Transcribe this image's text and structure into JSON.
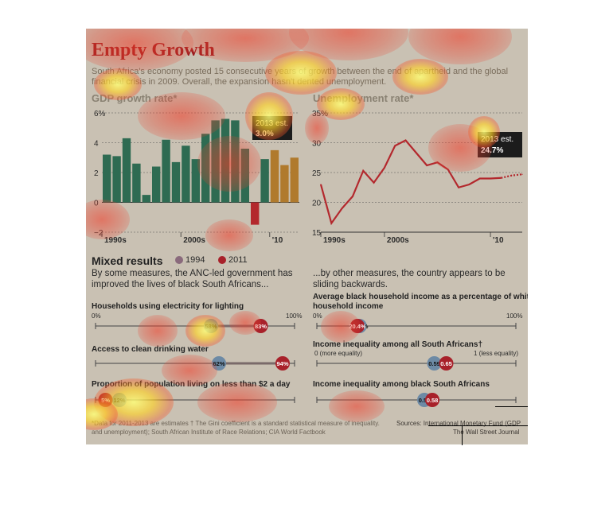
{
  "header": {
    "title": "Empty Growth",
    "subtitle_line1": "South Africa's economy posted 15 consecutive years of growth between the end of apartheid and the global",
    "subtitle_line2": "financial crisis in 2009. Overall, the expansion hasn't dented unemployment."
  },
  "chart_data": [
    {
      "type": "bar",
      "title": "GDP growth rate*",
      "ylim": [
        -2,
        6
      ],
      "y_ticks": [
        "6%",
        "4",
        "2",
        "0",
        "−2"
      ],
      "x_tick_labels": [
        "1990s",
        "2000s",
        "'10"
      ],
      "values": [
        3.2,
        3.1,
        4.3,
        2.6,
        0.5,
        2.4,
        4.2,
        2.7,
        3.8,
        2.9,
        4.6,
        5.5,
        5.6,
        5.5,
        3.6,
        -1.5,
        2.9,
        3.5,
        2.5,
        3.0
      ],
      "estimate_from_index": 17,
      "annotation_line1": "2013 est.",
      "annotation_line2": "3.0%",
      "colors": {
        "positive": "#2e6b52",
        "negative": "#b3282d",
        "estimate": "#b07a2d"
      }
    },
    {
      "type": "line",
      "title": "Unemployment rate*",
      "ylim": [
        15,
        35
      ],
      "y_ticks": [
        "35%",
        "30",
        "25",
        "20",
        "15"
      ],
      "x_tick_labels": [
        "1990s",
        "2000s",
        "'10"
      ],
      "values": [
        23.0,
        16.5,
        19.0,
        21.0,
        25.3,
        23.3,
        25.8,
        29.5,
        30.4,
        28.3,
        26.2,
        26.7,
        25.5,
        22.5,
        23.0,
        24.0,
        24.0,
        24.1,
        24.5,
        24.7
      ],
      "estimate_from_index": 17,
      "annotation_line1": "2013 est.",
      "annotation_line2": "24.7%",
      "colors": {
        "line": "#b3282d"
      }
    }
  ],
  "mixed": {
    "title": "Mixed results",
    "legend_1994": "1994",
    "legend_2011": "2011",
    "left_intro_1": "By some measures, the ANC-led government has",
    "left_intro_2": "improved the lives of black South Africans...",
    "right_intro_1": "...by other measures, the country appears to be",
    "right_intro_2": "sliding backwards.",
    "colors": {
      "c1994": "#6d8aa5",
      "c2011": "#a8212a"
    },
    "left_metrics": [
      {
        "label": "Households using electricity for lighting",
        "scale_min": "0%",
        "scale_max": "100%",
        "v1994": 0.58,
        "v2011": 0.83,
        "l1994": "58%",
        "l2011": "83%"
      },
      {
        "label": "Access to clean drinking water",
        "v1994": 0.62,
        "v2011": 0.94,
        "l1994": "62%",
        "l2011": "94%"
      },
      {
        "label": "Proportion of population living on less than $2 a day",
        "v1994": 0.12,
        "v2011": 0.05,
        "l1994": "12%",
        "l2011": "5%"
      }
    ],
    "right_metrics": [
      {
        "label_1": "Average black household income as a percentage of white",
        "label_2": "household income",
        "scale_min": "0%",
        "scale_max": "100%",
        "v1994": 0.215,
        "v2011": 0.204,
        "l1994": "21.5%",
        "l2011": "20.4%"
      },
      {
        "label_1": "Income inequality among all South Africans†",
        "scale_min": "0 (more equality)",
        "scale_max": "1 (less equality)",
        "v1994": 0.59,
        "v2011": 0.65,
        "l1994": "0.59",
        "l2011": "0.65"
      },
      {
        "label_1": "Income inequality among black South Africans",
        "v1994": 0.54,
        "v2011": 0.58,
        "l1994": "0.54",
        "l2011": "0.58"
      }
    ]
  },
  "footer": {
    "note_1": "*Data for 2011-2013 are estimates  † The Gini coefficient is a standard statistical measure of inequality.",
    "note_2": "and unemployment); South African Institute of Race Relations; CIA World Factbook",
    "sources": "Sources: International Monetary Fund (GDP",
    "credit": "The Wall Street Journal"
  }
}
